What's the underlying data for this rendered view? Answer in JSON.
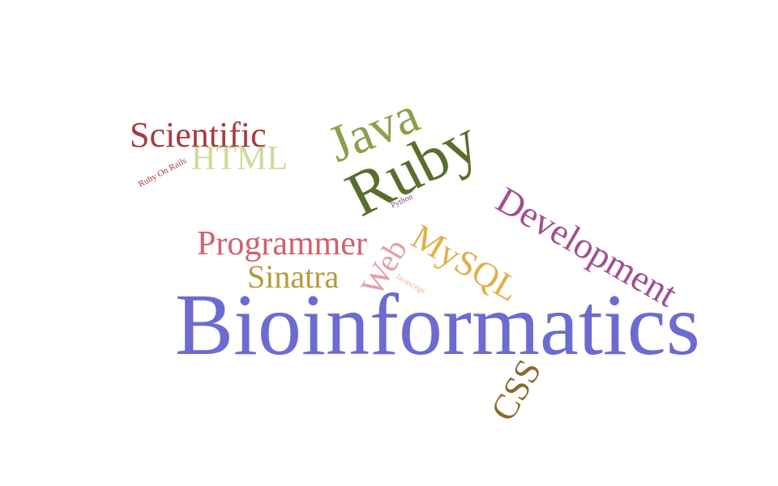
{
  "words": [
    {
      "text": "Bioinformatics",
      "color": "#6b6bd0"
    },
    {
      "text": "Ruby",
      "color": "#5a6e2c"
    },
    {
      "text": "Java",
      "color": "#8aa04a"
    },
    {
      "text": "Development",
      "color": "#a1508f"
    },
    {
      "text": "Programmer",
      "color": "#d0606e"
    },
    {
      "text": "Scientific",
      "color": "#a8393e"
    },
    {
      "text": "HTML",
      "color": "#cfd99a"
    },
    {
      "text": "Sinatra",
      "color": "#b89a3a"
    },
    {
      "text": "MySQL",
      "color": "#e0b04a"
    },
    {
      "text": "Web",
      "color": "#e0a0a8"
    },
    {
      "text": "CSS",
      "color": "#8a6a2e"
    },
    {
      "text": "Ruby On Rails",
      "color": "#a03a3a"
    },
    {
      "text": "Python",
      "color": "#8a3a7a"
    },
    {
      "text": "Javascript",
      "color": "#e8b48a"
    }
  ]
}
